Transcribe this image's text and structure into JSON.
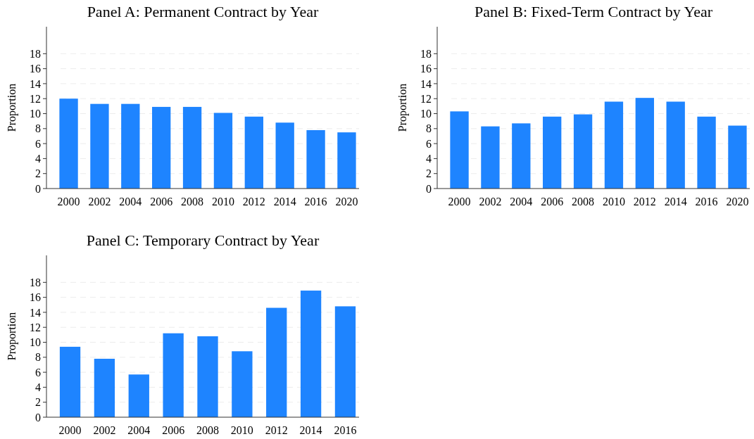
{
  "chart_data": [
    {
      "type": "bar",
      "title": "Panel A: Permanent Contract by Year",
      "ylabel": "Proportion",
      "categories": [
        "2000",
        "2002",
        "2004",
        "2006",
        "2008",
        "2010",
        "2012",
        "2014",
        "2016",
        "2020"
      ],
      "values": [
        12.0,
        11.3,
        11.3,
        10.9,
        10.9,
        10.1,
        9.6,
        8.8,
        7.8,
        7.5
      ],
      "color": "#1e84ff",
      "ylim": [
        0,
        21.6
      ],
      "yticks": [
        0,
        2,
        4,
        6,
        8,
        10,
        12,
        14,
        16,
        18
      ],
      "grid": "y"
    },
    {
      "type": "bar",
      "title": "Panel B: Fixed-Term Contract by Year",
      "ylabel": "Proportion",
      "categories": [
        "2000",
        "2002",
        "2004",
        "2006",
        "2008",
        "2010",
        "2012",
        "2014",
        "2016",
        "2020"
      ],
      "values": [
        10.3,
        8.3,
        8.7,
        9.6,
        9.9,
        11.6,
        12.1,
        11.6,
        9.6,
        8.4
      ],
      "color": "#1e84ff",
      "ylim": [
        0,
        21.6
      ],
      "yticks": [
        0,
        2,
        4,
        6,
        8,
        10,
        12,
        14,
        16,
        18
      ],
      "grid": "y"
    },
    {
      "type": "bar",
      "title": "Panel C: Temporary Contract by Year",
      "ylabel": "Proportion",
      "categories": [
        "2000",
        "2002",
        "2004",
        "2006",
        "2008",
        "2010",
        "2012",
        "2014",
        "2016"
      ],
      "values": [
        9.4,
        7.8,
        5.7,
        11.2,
        10.8,
        8.8,
        14.6,
        16.9,
        14.8
      ],
      "color": "#1e84ff",
      "ylim": [
        0,
        21.6
      ],
      "yticks": [
        0,
        2,
        4,
        6,
        8,
        10,
        12,
        14,
        16,
        18
      ],
      "grid": "y"
    }
  ]
}
